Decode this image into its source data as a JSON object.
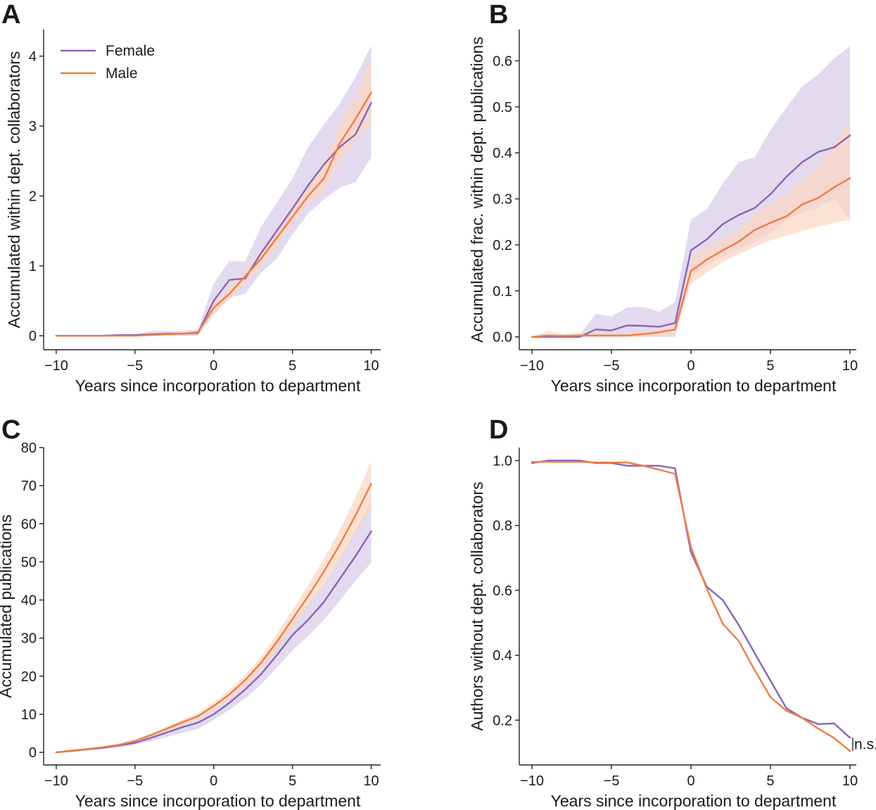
{
  "colors": {
    "female": "#8a64b4",
    "male": "#ee7d45",
    "female_band": "#d9cdea",
    "male_band": "#fbd6c0"
  },
  "legend": {
    "placement": "top-left",
    "in_panel": "A",
    "entries": [
      {
        "label": "Female",
        "series": "female"
      },
      {
        "label": "Male",
        "series": "male"
      }
    ]
  },
  "chart_data": [
    {
      "panel": "A",
      "type": "line",
      "xlabel": "Years since incorporation to department",
      "ylabel": "Accumulated within dept. collaborators",
      "xlim": [
        -10.8,
        10.6
      ],
      "ylim": [
        -0.2,
        4.38
      ],
      "xticks": [
        -10,
        -5,
        0,
        5,
        10
      ],
      "xtick_labels": [
        "−10",
        "−5",
        "0",
        "5",
        "10"
      ],
      "yticks": [
        0,
        1,
        2,
        3,
        4
      ],
      "ytick_labels": [
        "0",
        "1",
        "2",
        "3",
        "4"
      ],
      "grid": false,
      "x": [
        -10,
        -9,
        -8,
        -7,
        -6,
        -5,
        -4,
        -3,
        -2,
        -1,
        0,
        1,
        2,
        3,
        4,
        5,
        6,
        7,
        8,
        9,
        10
      ],
      "series": [
        {
          "name": "Female",
          "key": "female",
          "values": [
            0,
            0,
            0,
            0,
            0.01,
            0.01,
            0.02,
            0.03,
            0.03,
            0.04,
            0.5,
            0.8,
            0.82,
            1.18,
            1.5,
            1.82,
            2.15,
            2.45,
            2.7,
            2.88,
            3.33
          ],
          "lower": [
            0,
            0,
            0,
            0,
            0,
            0,
            0,
            0,
            0,
            0,
            0.3,
            0.55,
            0.6,
            0.9,
            1.1,
            1.45,
            1.75,
            1.95,
            2.12,
            2.2,
            2.55
          ],
          "upper": [
            0,
            0.01,
            0.01,
            0.01,
            0.02,
            0.02,
            0.07,
            0.07,
            0.07,
            0.09,
            0.75,
            1.07,
            1.06,
            1.56,
            1.9,
            2.25,
            2.7,
            3.02,
            3.32,
            3.7,
            4.15
          ]
        },
        {
          "name": "Male",
          "key": "male",
          "values": [
            0,
            0,
            0,
            0,
            0,
            0,
            0.01,
            0.02,
            0.03,
            0.05,
            0.4,
            0.6,
            0.85,
            1.1,
            1.4,
            1.7,
            2.0,
            2.25,
            2.75,
            3.1,
            3.48
          ],
          "lower": [
            0,
            0,
            0,
            0,
            0,
            0,
            0,
            0,
            0.01,
            0.02,
            0.33,
            0.52,
            0.75,
            1.0,
            1.3,
            1.6,
            1.9,
            2.05,
            2.5,
            2.8,
            3.05
          ],
          "upper": [
            0,
            0,
            0,
            0,
            0.01,
            0.01,
            0.02,
            0.03,
            0.05,
            0.08,
            0.47,
            0.7,
            0.95,
            1.22,
            1.52,
            1.82,
            2.12,
            2.45,
            3.0,
            3.45,
            3.92
          ]
        }
      ]
    },
    {
      "panel": "B",
      "type": "line",
      "xlabel": "Years since incorporation to department",
      "ylabel": "Accumulated frac. within dept. publications",
      "xlim": [
        -10.8,
        10.4
      ],
      "ylim": [
        -0.028,
        0.668
      ],
      "xticks": [
        -10,
        -5,
        0,
        5,
        10
      ],
      "xtick_labels": [
        "−10",
        "−5",
        "0",
        "5",
        "10"
      ],
      "yticks": [
        0.0,
        0.1,
        0.2,
        0.3,
        0.4,
        0.5,
        0.6
      ],
      "ytick_labels": [
        "0.0",
        "0.1",
        "0.2",
        "0.3",
        "0.4",
        "0.5",
        "0.6"
      ],
      "grid": false,
      "x": [
        -10,
        -9,
        -8,
        -7,
        -6,
        -5,
        -4,
        -3,
        -2,
        -1,
        0,
        1,
        2,
        3,
        4,
        5,
        6,
        7,
        8,
        9,
        10
      ],
      "series": [
        {
          "name": "Female",
          "key": "female",
          "values": [
            0,
            0,
            0,
            0,
            0.016,
            0.014,
            0.025,
            0.024,
            0.022,
            0.03,
            0.188,
            0.212,
            0.245,
            0.265,
            0.28,
            0.31,
            0.348,
            0.38,
            0.402,
            0.412,
            0.438
          ],
          "lower": [
            0,
            0,
            0,
            0,
            0,
            0,
            0,
            0,
            0,
            0,
            0.13,
            0.155,
            0.175,
            0.19,
            0.205,
            0.225,
            0.255,
            0.27,
            0.28,
            0.3,
            0.255
          ],
          "upper": [
            0,
            0.004,
            0.004,
            0.004,
            0.05,
            0.044,
            0.064,
            0.065,
            0.055,
            0.075,
            0.255,
            0.278,
            0.333,
            0.38,
            0.39,
            0.45,
            0.498,
            0.545,
            0.57,
            0.605,
            0.632
          ]
        },
        {
          "name": "Male",
          "key": "male",
          "values": [
            0,
            0.003,
            0.002,
            0.003,
            0.003,
            0.003,
            0.003,
            0.006,
            0.01,
            0.016,
            0.143,
            0.168,
            0.188,
            0.207,
            0.232,
            0.248,
            0.262,
            0.288,
            0.302,
            0.325,
            0.345
          ],
          "lower": [
            0,
            0,
            0,
            0,
            0,
            0,
            0,
            0,
            0.002,
            0.007,
            0.115,
            0.14,
            0.163,
            0.18,
            0.195,
            0.21,
            0.22,
            0.23,
            0.24,
            0.248,
            0.255
          ],
          "upper": [
            0,
            0.012,
            0.006,
            0.009,
            0.009,
            0.009,
            0.009,
            0.011,
            0.018,
            0.025,
            0.172,
            0.197,
            0.214,
            0.232,
            0.268,
            0.29,
            0.31,
            0.34,
            0.37,
            0.42,
            0.47
          ]
        }
      ]
    },
    {
      "panel": "C",
      "type": "line",
      "xlabel": "Years since incorporation to department",
      "ylabel": "Accumulated publications",
      "xlim": [
        -10.8,
        10.6
      ],
      "ylim": [
        -3.3,
        80
      ],
      "xticks": [
        -10,
        -5,
        0,
        5,
        10
      ],
      "xtick_labels": [
        "−10",
        "−5",
        "0",
        "5",
        "10"
      ],
      "yticks": [
        0,
        10,
        20,
        30,
        40,
        50,
        60,
        70,
        80
      ],
      "ytick_labels": [
        "0",
        "10",
        "20",
        "30",
        "40",
        "50",
        "60",
        "70",
        "80"
      ],
      "grid": false,
      "x": [
        -10,
        -9,
        -8,
        -7,
        -6,
        -5,
        -4,
        -3,
        -2,
        -1,
        0,
        1,
        2,
        3,
        4,
        5,
        6,
        7,
        8,
        9,
        10
      ],
      "series": [
        {
          "name": "Female",
          "key": "female",
          "values": [
            0,
            0.4,
            0.8,
            1.2,
            1.8,
            2.5,
            3.8,
            5.2,
            6.6,
            7.8,
            10,
            13,
            16.5,
            20.5,
            25.5,
            30.8,
            34.8,
            39.5,
            45.5,
            51.5,
            58
          ],
          "lower": [
            0,
            0.3,
            0.6,
            0.9,
            1.4,
            2.0,
            2.9,
            4.0,
            5.1,
            6.2,
            8.5,
            11.2,
            14.2,
            17.8,
            22.2,
            26.8,
            30.5,
            34.8,
            39.8,
            45,
            49.8
          ],
          "upper": [
            0,
            0.5,
            1.0,
            1.5,
            2.2,
            3.0,
            4.6,
            6.3,
            7.9,
            9.3,
            11.6,
            14.8,
            18.7,
            23.2,
            28.8,
            34.8,
            39.0,
            44.2,
            51.0,
            58.2,
            66.2
          ]
        },
        {
          "name": "Male",
          "key": "male",
          "values": [
            0,
            0.5,
            0.9,
            1.4,
            2.0,
            3.0,
            4.5,
            6.2,
            7.9,
            9.5,
            12.2,
            15.2,
            19,
            23.5,
            29,
            35,
            41,
            47.5,
            54.5,
            62.2,
            70.5
          ],
          "lower": [
            0,
            0.4,
            0.7,
            1.2,
            1.7,
            2.6,
            4.0,
            5.6,
            7.2,
            8.7,
            11.2,
            14.0,
            17.6,
            21.9,
            27.0,
            32.6,
            38.2,
            44.2,
            50.6,
            57.5,
            64.6
          ],
          "upper": [
            0,
            0.6,
            1.1,
            1.6,
            2.3,
            3.4,
            5.0,
            6.8,
            8.6,
            10.3,
            13.2,
            16.4,
            20.4,
            25.1,
            31.0,
            37.4,
            43.8,
            50.8,
            58.4,
            66.9,
            76.4
          ]
        }
      ]
    },
    {
      "panel": "D",
      "type": "line",
      "xlabel": "Years since incorporation to department",
      "ylabel": "Authors without dept. collaborators",
      "xlim": [
        -10.8,
        10.4
      ],
      "ylim": [
        0.062,
        1.04
      ],
      "xticks": [
        -10,
        -5,
        0,
        5,
        10
      ],
      "xtick_labels": [
        "−10",
        "−5",
        "0",
        "5",
        "10"
      ],
      "yticks": [
        0.2,
        0.4,
        0.6,
        0.8,
        1.0
      ],
      "ytick_labels": [
        "0.2",
        "0.4",
        "0.6",
        "0.8",
        "1.0"
      ],
      "grid": false,
      "annotation": {
        "text": "n.s.",
        "at_x": 10
      },
      "x": [
        -10,
        -9,
        -8,
        -7,
        -6,
        -5,
        -4,
        -3,
        -2,
        -1,
        0,
        1,
        2,
        3,
        4,
        5,
        6,
        7,
        8,
        9,
        10
      ],
      "series": [
        {
          "name": "Female",
          "key": "female",
          "values": [
            0.992,
            1.0,
            1.0,
            1.0,
            0.992,
            0.992,
            0.984,
            0.984,
            0.984,
            0.976,
            0.717,
            0.611,
            0.57,
            0.494,
            0.407,
            0.322,
            0.237,
            0.207,
            0.188,
            0.19,
            0.146
          ]
        },
        {
          "name": "Male",
          "key": "male",
          "values": [
            0.996,
            0.996,
            0.996,
            0.996,
            0.994,
            0.994,
            0.994,
            0.984,
            0.972,
            0.959,
            0.733,
            0.605,
            0.497,
            0.444,
            0.355,
            0.271,
            0.229,
            0.207,
            0.174,
            0.145,
            0.105
          ]
        }
      ]
    }
  ]
}
